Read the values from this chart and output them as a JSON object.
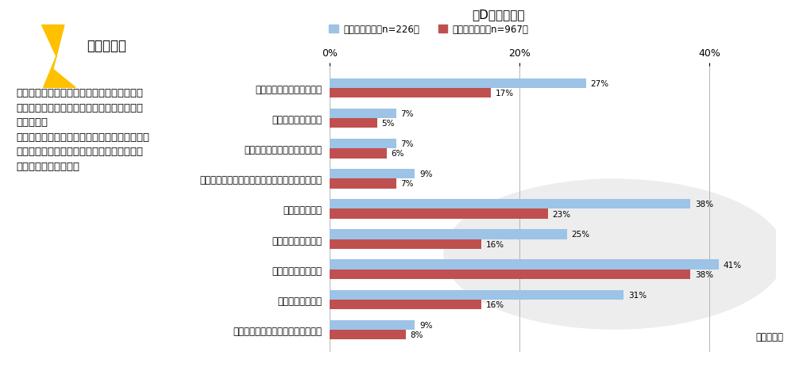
{
  "title": "（D）イメージ",
  "categories": [
    "おいしい料理・食材がある",
    "おいしいお酒がある",
    "魅力的な飲食街・歓楽街がある",
    "この地域でしか味わえない食べ物・飲み物がある",
    "よい温泉がある",
    "よい宿泊施設がある",
    "自然にあふれている",
    "四季が感じられる",
    "歩いて楽しめる通りや街並みがある"
  ],
  "values_ari": [
    27,
    7,
    7,
    9,
    38,
    25,
    41,
    31,
    9
  ],
  "values_nashi": [
    17,
    5,
    6,
    7,
    23,
    16,
    38,
    16,
    8
  ],
  "color_ari": "#9DC3E6",
  "color_nashi": "#C05050",
  "legend_ari": "訪問経験あり（n=226）",
  "legend_nashi": "訪問経験なし（n=967）",
  "xlim": [
    0,
    47
  ],
  "xticks": [
    0,
    20,
    40
  ],
  "xticklabels": [
    "0%",
    "20%",
    "40%"
  ],
  "background_color": "#ffffff",
  "annotation_note": "＊一部抜粋",
  "check_text": "チェック！",
  "body_text": "満足度スコアが高い項目に対して、それら項\n目が訪問経験別にイメージギャップがあるの\nかを見る。\nギャップがある要素に注目し、発信していくこ\nとで、まだ知られていない地域の魅力を広げ\nることはできないか？",
  "bar_height": 0.32
}
